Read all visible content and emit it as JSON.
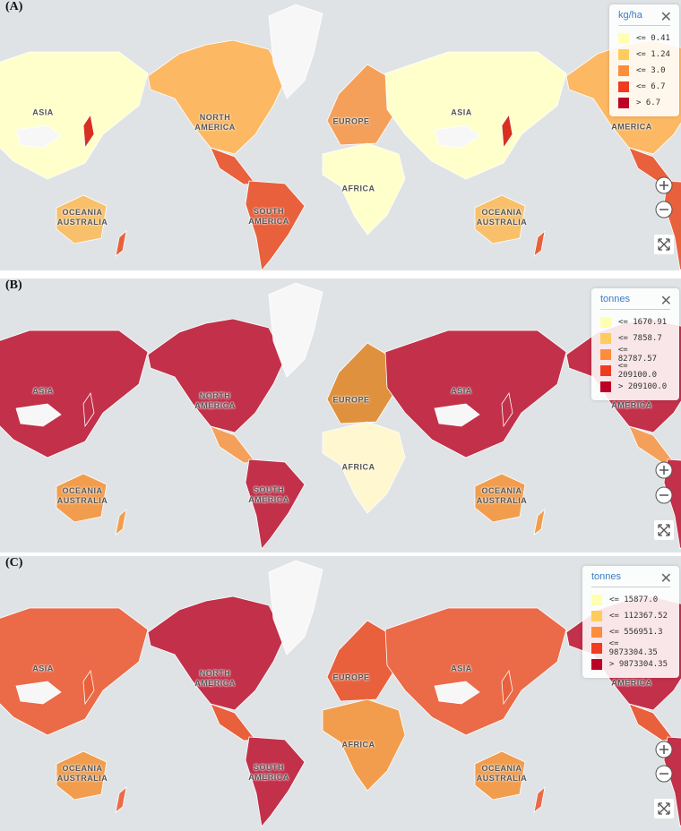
{
  "panels": [
    {
      "label": "(A)",
      "legend": {
        "title": "kg/ha",
        "items": [
          {
            "label": "<= 0.41",
            "color": "#ffffb2"
          },
          {
            "label": "<= 1.24",
            "color": "#fecc5c"
          },
          {
            "label": "<= 3.0",
            "color": "#fd8d3c"
          },
          {
            "label": "<= 6.7",
            "color": "#f03b20"
          },
          {
            "label": "> 6.7",
            "color": "#bd0026"
          }
        ]
      },
      "map_labels": [
        "ASIA",
        "NORTH AMERICA",
        "EUROPE",
        "AFRICA",
        "SOUTH AMERICA",
        "OCEANIA AUSTRALIA",
        "ASIA",
        "OCEANIA AUSTRALIA",
        "AMERICA"
      ]
    },
    {
      "label": "(B)",
      "legend": {
        "title": "tonnes",
        "items": [
          {
            "label": "<= 1670.91",
            "color": "#ffffb2"
          },
          {
            "label": "<= 7858.7",
            "color": "#fecc5c"
          },
          {
            "label": "<= 82787.57",
            "color": "#fd8d3c"
          },
          {
            "label": "<= 209100.0",
            "color": "#f03b20"
          },
          {
            "label": "> 209100.0",
            "color": "#bd0026"
          }
        ]
      },
      "map_labels": [
        "ASIA",
        "NORTH AMERICA",
        "EUROPE",
        "AFRICA",
        "SOUTH AMERICA",
        "OCEANIA AUSTRALIA",
        "ASIA",
        "OCEANIA AUSTRALIA",
        "AMERICA"
      ]
    },
    {
      "label": "(C)",
      "legend": {
        "title": "tonnes",
        "items": [
          {
            "label": "<= 15877.0",
            "color": "#ffffb2"
          },
          {
            "label": "<= 112367.52",
            "color": "#fecc5c"
          },
          {
            "label": "<= 556951.3",
            "color": "#fd8d3c"
          },
          {
            "label": "<= 9873304.35",
            "color": "#f03b20"
          },
          {
            "label": "> 9873304.35",
            "color": "#bd0026"
          }
        ]
      },
      "map_labels": [
        "ASIA",
        "NORTH AMERICA",
        "EUROPE",
        "AFRICA",
        "SOUTH AMERICA",
        "OCEANIA AUSTRALIA",
        "ASIA",
        "OCEANIA AUSTRALIA",
        "AMERICA"
      ]
    }
  ]
}
